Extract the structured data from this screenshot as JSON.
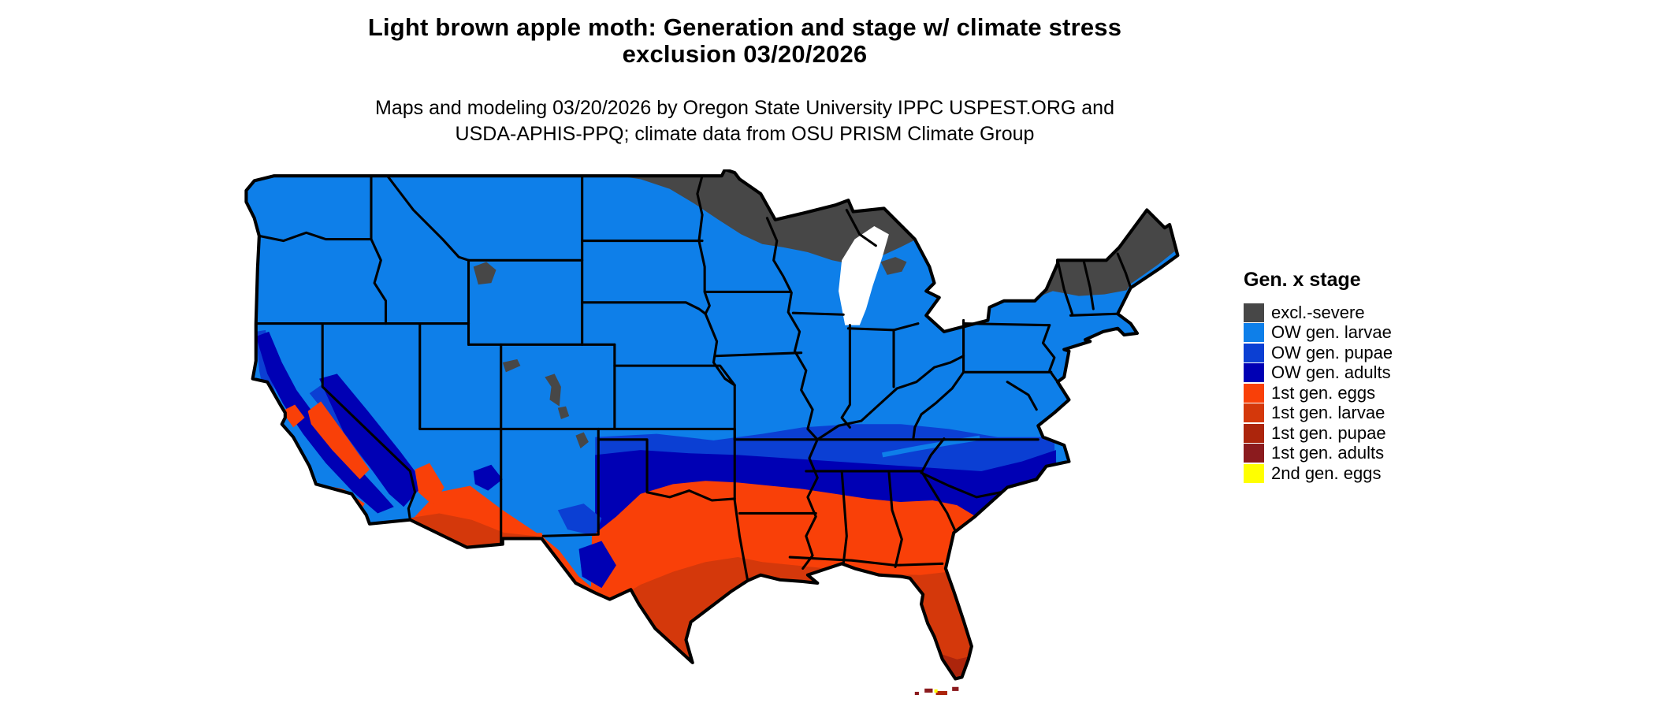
{
  "title": {
    "line1": "Light brown apple moth: Generation and stage w/ climate stress",
    "line2": "exclusion 03/20/2026"
  },
  "subtitle": {
    "line1": "Maps and modeling 03/20/2026 by Oregon State University IPPC USPEST.ORG and",
    "line2": "USDA-APHIS-PPQ; climate data from OSU PRISM Climate Group"
  },
  "legend": {
    "title": "Gen. x stage",
    "items": [
      {
        "key": "excl_severe",
        "label": "excl.-severe",
        "color": "#474747"
      },
      {
        "key": "ow_larvae",
        "label": "OW gen. larvae",
        "color": "#0E7FE9"
      },
      {
        "key": "ow_pupae",
        "label": "OW gen. pupae",
        "color": "#0B3FD3"
      },
      {
        "key": "ow_adults",
        "label": "OW gen. adults",
        "color": "#0000B4"
      },
      {
        "key": "g1_eggs",
        "label": "1st gen. eggs",
        "color": "#F94008"
      },
      {
        "key": "g1_larvae",
        "label": "1st gen. larvae",
        "color": "#D4380B"
      },
      {
        "key": "g1_pupae",
        "label": "1st gen. pupae",
        "color": "#AC250C"
      },
      {
        "key": "g1_adults",
        "label": "1st gen. adults",
        "color": "#8B1B1E"
      },
      {
        "key": "g2_eggs",
        "label": "2nd gen. eggs",
        "color": "#FFFF00"
      }
    ]
  },
  "map": {
    "colors": {
      "excl_severe": "#474747",
      "ow_larvae": "#0E7FE9",
      "ow_pupae": "#0B3FD3",
      "ow_adults": "#0000B4",
      "g1_eggs": "#F94008",
      "g1_larvae": "#D4380B",
      "g1_pupae": "#AC250C",
      "g1_adults": "#8B1B1E",
      "g2_eggs": "#FFFF00",
      "water": "#FFFFFF",
      "border": "#000000"
    }
  }
}
